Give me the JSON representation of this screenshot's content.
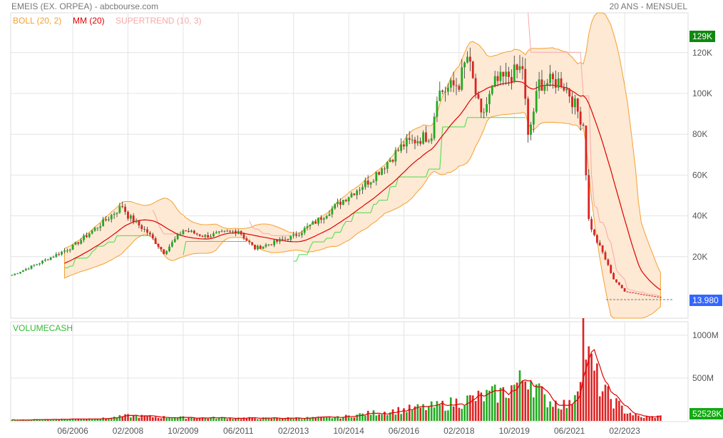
{
  "header": {
    "title": "EMEIS (EX. ORPEA) - abcbourse.com",
    "period": "20 ANS - MENSUEL"
  },
  "legend": {
    "boll": "BOLL (20, 2)",
    "mm": "MM (20)",
    "supertrend": "SUPERTREND (10, 3)",
    "volume": "VOLUMECASH"
  },
  "colors": {
    "boll": "#f5a030",
    "mm": "#e00000",
    "supertrend_down": "#f8a8a8",
    "supertrend_up": "#44dd44",
    "up": "#22aa22",
    "down": "#dd2222",
    "last_price": "#3366ff",
    "high_badge": "#118811"
  },
  "badges": {
    "high": "129K",
    "last": "13.980",
    "volume_last": "52528K"
  },
  "chart_data": [
    {
      "type": "candlestick",
      "title": "EMEIS (EX. ORPEA)",
      "x_start": "2004-08",
      "x_end": "2024-03",
      "x_ticks": [
        "06/2006",
        "02/2008",
        "10/2009",
        "06/2011",
        "02/2013",
        "10/2014",
        "06/2016",
        "02/2018",
        "10/2019",
        "06/2021",
        "02/2023"
      ],
      "y_ticks": [
        "120K",
        "100K",
        "80K",
        "60K",
        "40K",
        "20K"
      ],
      "ylim": [
        0,
        130
      ],
      "close_keypoints": [
        [
          "2004-08",
          11
        ],
        [
          "2005-06",
          17
        ],
        [
          "2006-06",
          25
        ],
        [
          "2007-06",
          38
        ],
        [
          "2007-12",
          45
        ],
        [
          "2008-02",
          40
        ],
        [
          "2008-09",
          32
        ],
        [
          "2009-03",
          22
        ],
        [
          "2009-10",
          33
        ],
        [
          "2010-06",
          30
        ],
        [
          "2011-06",
          33
        ],
        [
          "2011-09",
          28
        ],
        [
          "2011-12",
          24
        ],
        [
          "2013-02",
          30
        ],
        [
          "2013-10",
          37
        ],
        [
          "2014-10",
          50
        ],
        [
          "2015-06",
          58
        ],
        [
          "2016-06",
          75
        ],
        [
          "2017-04",
          80
        ],
        [
          "2017-06",
          100
        ],
        [
          "2018-02",
          105
        ],
        [
          "2018-05",
          118
        ],
        [
          "2018-10",
          88
        ],
        [
          "2019-03",
          105
        ],
        [
          "2019-10",
          110
        ],
        [
          "2020-01",
          113
        ],
        [
          "2020-03",
          78
        ],
        [
          "2020-07",
          105
        ],
        [
          "2021-03",
          106
        ],
        [
          "2021-06",
          100
        ],
        [
          "2021-11",
          85
        ],
        [
          "2022-01",
          38
        ],
        [
          "2022-03",
          30
        ],
        [
          "2022-06",
          22
        ],
        [
          "2022-10",
          9
        ],
        [
          "2023-02",
          3
        ],
        [
          "2023-08",
          1.5
        ],
        [
          "2024-03",
          0.01
        ]
      ]
    },
    {
      "type": "bar",
      "title": "VOLUMECASH",
      "y_ticks": [
        "1000M",
        "500M"
      ],
      "ylim": [
        0,
        1150
      ],
      "volume_keypoints": [
        [
          "2004-08",
          10
        ],
        [
          "2007-06",
          30
        ],
        [
          "2008-02",
          60
        ],
        [
          "2009-06",
          40
        ],
        [
          "2012-06",
          30
        ],
        [
          "2014-06",
          40
        ],
        [
          "2015-06",
          90
        ],
        [
          "2016-06",
          130
        ],
        [
          "2017-06",
          170
        ],
        [
          "2018-06",
          250
        ],
        [
          "2019-06",
          330
        ],
        [
          "2019-12",
          450
        ],
        [
          "2020-03",
          550
        ],
        [
          "2020-09",
          250
        ],
        [
          "2021-06",
          180
        ],
        [
          "2021-09",
          450
        ],
        [
          "2021-11",
          1050
        ],
        [
          "2022-01",
          700
        ],
        [
          "2022-06",
          350
        ],
        [
          "2023-02",
          120
        ],
        [
          "2023-08",
          40
        ],
        [
          "2024-03",
          52.5
        ]
      ]
    }
  ]
}
